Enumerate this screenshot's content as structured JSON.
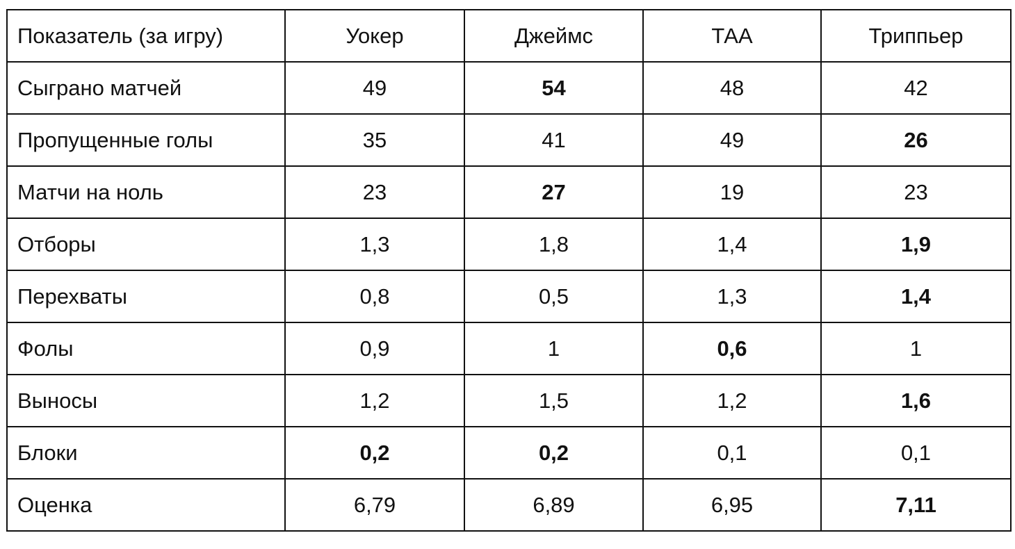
{
  "table": {
    "headers": [
      "Показатель (за игру)",
      "Уокер",
      "Джеймс",
      "ТАА",
      "Триппьер"
    ],
    "rows": [
      {
        "label": "Сыграно матчей",
        "values": [
          "49",
          "54",
          "48",
          "42"
        ],
        "bold": [
          false,
          true,
          false,
          false
        ]
      },
      {
        "label": "Пропущенные голы",
        "values": [
          "35",
          "41",
          "49",
          "26"
        ],
        "bold": [
          false,
          false,
          false,
          true
        ]
      },
      {
        "label": "Матчи на ноль",
        "values": [
          "23",
          "27",
          "19",
          "23"
        ],
        "bold": [
          false,
          true,
          false,
          false
        ]
      },
      {
        "label": "Отборы",
        "values": [
          "1,3",
          "1,8",
          "1,4",
          "1,9"
        ],
        "bold": [
          false,
          false,
          false,
          true
        ]
      },
      {
        "label": "Перехваты",
        "values": [
          "0,8",
          "0,5",
          "1,3",
          "1,4"
        ],
        "bold": [
          false,
          false,
          false,
          true
        ]
      },
      {
        "label": "Фолы",
        "values": [
          "0,9",
          "1",
          "0,6",
          "1"
        ],
        "bold": [
          false,
          false,
          true,
          false
        ]
      },
      {
        "label": "Выносы",
        "values": [
          "1,2",
          "1,5",
          "1,2",
          "1,6"
        ],
        "bold": [
          false,
          false,
          false,
          true
        ]
      },
      {
        "label": "Блоки",
        "values": [
          "0,2",
          "0,2",
          "0,1",
          "0,1"
        ],
        "bold": [
          true,
          true,
          false,
          false
        ]
      },
      {
        "label": "Оценка",
        "values": [
          "6,79",
          "6,89",
          "6,95",
          "7,11"
        ],
        "bold": [
          false,
          false,
          false,
          true
        ]
      }
    ]
  }
}
